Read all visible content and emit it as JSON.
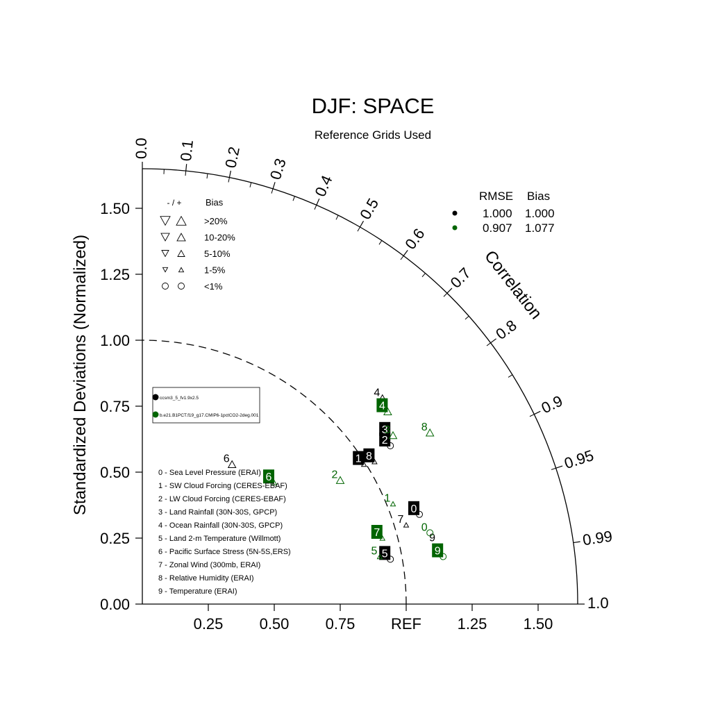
{
  "chart_data": {
    "type": "scatter",
    "chart_kind": "taylor-diagram",
    "title": "DJF: SPACE",
    "subtitle": "Reference Grids Used",
    "ylabel": "Standardized Deviations (Normalized)",
    "arc_label": "Correlation",
    "ref_label": "REF",
    "ylim": [
      0,
      1.65
    ],
    "y_ticks": [
      "0.00",
      "0.25",
      "0.50",
      "0.75",
      "1.00",
      "1.25",
      "1.50"
    ],
    "x_ticks": [
      "0.25",
      "0.50",
      "0.75",
      "REF",
      "1.25",
      "1.50"
    ],
    "correlation_ticks": [
      "0.0",
      "0.1",
      "0.2",
      "0.3",
      "0.4",
      "0.5",
      "0.6",
      "0.7",
      "0.8",
      "0.9",
      "0.95",
      "0.99",
      "1.0"
    ],
    "correlation_values": [
      0,
      0.1,
      0.2,
      0.3,
      0.4,
      0.5,
      0.6,
      0.7,
      0.8,
      0.9,
      0.95,
      0.99,
      1.0
    ],
    "ref_arc_radius": 1.0,
    "bias_legend": {
      "header_sign": "- / +",
      "header": "Bias",
      "rows": [
        ">20%",
        "10-20%",
        "5-10%",
        "1-5%",
        "<1%"
      ]
    },
    "stats_legend": {
      "headers": [
        "RMSE",
        "Bias"
      ],
      "rows": [
        {
          "rmse": "1.000",
          "bias": "1.000",
          "color": "#000000"
        },
        {
          "rmse": "0.907",
          "bias": "1.077",
          "color": "#006400"
        }
      ]
    },
    "case_legend": [
      {
        "name": "ccsm3_5_fv1.9x2.5",
        "color": "#000000"
      },
      {
        "name": "b.e21.B1PCT.f19_g17.CMIP6-1pctCO2-2deg.001",
        "color": "#006400"
      }
    ],
    "variable_list": [
      "0 - Sea Level Pressure (ERAI)",
      "1 - SW Cloud Forcing (CERES-EBAF)",
      "2 - LW Cloud Forcing (CERES-EBAF)",
      "3 - Land Rainfall (30N-30S, GPCP)",
      "4 - Ocean Rainfall (30N-30S, GPCP)",
      "5 - Land 2-m Temperature (Willmott)",
      "6 - Pacific Surface Stress (5N-5S,ERS)",
      "7 - Zonal Wind (300mb, ERAI)",
      "8 - Relative Humidity (ERAI)",
      "9 - Temperature (ERAI)"
    ],
    "series": [
      {
        "name": "ccsm3_5_fv1.9x2.5",
        "color": "#000000",
        "points": [
          {
            "label": "0",
            "x": 1.05,
            "y": 0.34,
            "marker": "circle",
            "boxed": true
          },
          {
            "label": "1",
            "x": 0.84,
            "y": 0.53,
            "marker": "triangle-up-small",
            "boxed": true
          },
          {
            "label": "2",
            "x": 0.94,
            "y": 0.6,
            "marker": "circle",
            "boxed": true
          },
          {
            "label": "3",
            "x": 0.94,
            "y": 0.64,
            "marker": "none",
            "boxed": true
          },
          {
            "label": "4",
            "x": 0.91,
            "y": 0.78,
            "marker": "triangle-up",
            "boxed": false
          },
          {
            "label": "5",
            "x": 0.94,
            "y": 0.17,
            "marker": "circle",
            "boxed": true
          },
          {
            "label": "6",
            "x": 0.34,
            "y": 0.53,
            "marker": "triangle-up",
            "boxed": false
          },
          {
            "label": "7",
            "x": 1.0,
            "y": 0.3,
            "marker": "triangle-up-small",
            "boxed": false
          },
          {
            "label": "8",
            "x": 0.88,
            "y": 0.54,
            "marker": "triangle-up-small",
            "boxed": true
          },
          {
            "label": "9",
            "x": 1.12,
            "y": 0.23,
            "marker": "none",
            "boxed": false
          }
        ]
      },
      {
        "name": "b.e21.B1PCT.f19_g17.CMIP6-1pctCO2-2deg.001",
        "color": "#006400",
        "points": [
          {
            "label": "0",
            "x": 1.09,
            "y": 0.27,
            "marker": "circle",
            "boxed": false
          },
          {
            "label": "1",
            "x": 0.95,
            "y": 0.38,
            "marker": "triangle-up-small",
            "boxed": false
          },
          {
            "label": "2",
            "x": 0.75,
            "y": 0.47,
            "marker": "triangle-up",
            "boxed": false
          },
          {
            "label": "3",
            "x": 0.95,
            "y": 0.64,
            "marker": "triangle-up",
            "boxed": false
          },
          {
            "label": "4",
            "x": 0.93,
            "y": 0.73,
            "marker": "triangle-up",
            "boxed": true
          },
          {
            "label": "5",
            "x": 0.9,
            "y": 0.18,
            "marker": "triangle-up-small",
            "boxed": false
          },
          {
            "label": "6",
            "x": 0.5,
            "y": 0.46,
            "marker": "triangle-up-small",
            "boxed": true
          },
          {
            "label": "7",
            "x": 0.91,
            "y": 0.25,
            "marker": "triangle-up-small",
            "boxed": true
          },
          {
            "label": "8",
            "x": 1.09,
            "y": 0.65,
            "marker": "triangle-up",
            "boxed": false
          },
          {
            "label": "9",
            "x": 1.14,
            "y": 0.18,
            "marker": "circle",
            "boxed": true
          }
        ]
      }
    ]
  }
}
